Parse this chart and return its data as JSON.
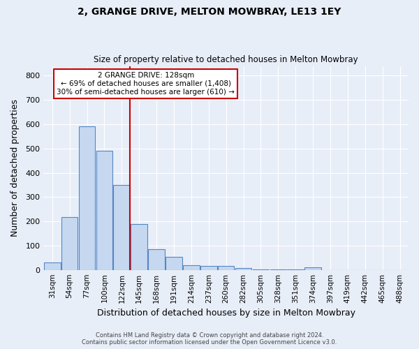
{
  "title": "2, GRANGE DRIVE, MELTON MOWBRAY, LE13 1EY",
  "subtitle": "Size of property relative to detached houses in Melton Mowbray",
  "xlabel": "Distribution of detached houses by size in Melton Mowbray",
  "ylabel": "Number of detached properties",
  "categories": [
    "31sqm",
    "54sqm",
    "77sqm",
    "100sqm",
    "122sqm",
    "145sqm",
    "168sqm",
    "191sqm",
    "214sqm",
    "237sqm",
    "260sqm",
    "282sqm",
    "305sqm",
    "328sqm",
    "351sqm",
    "374sqm",
    "397sqm",
    "419sqm",
    "442sqm",
    "465sqm",
    "488sqm"
  ],
  "values": [
    32,
    218,
    590,
    490,
    350,
    188,
    84,
    54,
    20,
    16,
    16,
    7,
    2,
    2,
    2,
    10,
    0,
    0,
    0,
    0,
    0
  ],
  "bar_color": "#c5d8f0",
  "bar_edge_color": "#5585c5",
  "background_color": "#e8eef8",
  "grid_color": "#ffffff",
  "vline_color": "#cc0000",
  "annotation_text": "2 GRANGE DRIVE: 128sqm\n← 69% of detached houses are smaller (1,408)\n30% of semi-detached houses are larger (610) →",
  "annotation_box_color": "#ffffff",
  "annotation_edge_color": "#cc0000",
  "footer_line1": "Contains HM Land Registry data © Crown copyright and database right 2024.",
  "footer_line2": "Contains public sector information licensed under the Open Government Licence v3.0.",
  "ylim": [
    0,
    840
  ],
  "yticks": [
    0,
    100,
    200,
    300,
    400,
    500,
    600,
    700,
    800
  ],
  "figsize": [
    6.0,
    5.0
  ],
  "dpi": 100
}
